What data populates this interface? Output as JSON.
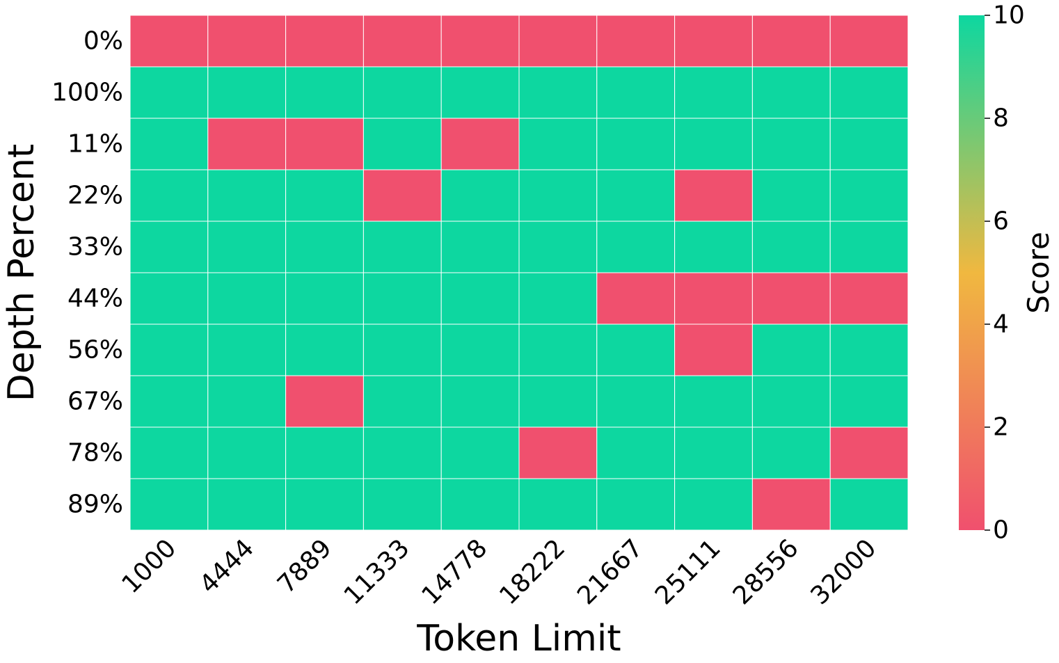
{
  "chart_data": {
    "type": "heatmap",
    "title": "",
    "xlabel": "Token Limit",
    "ylabel": "Depth Percent",
    "x_categories": [
      "1000",
      "4444",
      "7889",
      "11333",
      "14778",
      "18222",
      "21667",
      "25111",
      "28556",
      "32000"
    ],
    "y_categories": [
      "0%",
      "100%",
      "11%",
      "22%",
      "33%",
      "44%",
      "56%",
      "67%",
      "78%",
      "89%"
    ],
    "values": [
      [
        0,
        0,
        0,
        0,
        0,
        0,
        0,
        0,
        0,
        0
      ],
      [
        10,
        10,
        10,
        10,
        10,
        10,
        10,
        10,
        10,
        10
      ],
      [
        10,
        0,
        0,
        10,
        0,
        10,
        10,
        10,
        10,
        10
      ],
      [
        10,
        10,
        10,
        0,
        10,
        10,
        10,
        0,
        10,
        10
      ],
      [
        10,
        10,
        10,
        10,
        10,
        10,
        10,
        10,
        10,
        10
      ],
      [
        10,
        10,
        10,
        10,
        10,
        10,
        0,
        0,
        0,
        0
      ],
      [
        10,
        10,
        10,
        10,
        10,
        10,
        10,
        0,
        10,
        10
      ],
      [
        10,
        10,
        0,
        10,
        10,
        10,
        10,
        10,
        10,
        10
      ],
      [
        10,
        10,
        10,
        10,
        10,
        0,
        10,
        10,
        10,
        0
      ],
      [
        10,
        10,
        10,
        10,
        10,
        10,
        10,
        10,
        0,
        10
      ]
    ],
    "colorbar": {
      "label": "Score",
      "range": [
        0,
        10
      ],
      "ticks": [
        "0",
        "2",
        "4",
        "6",
        "8",
        "10"
      ],
      "colors": [
        "#f0506e",
        "#f0b840",
        "#0dd7a0"
      ]
    },
    "grid": true
  }
}
